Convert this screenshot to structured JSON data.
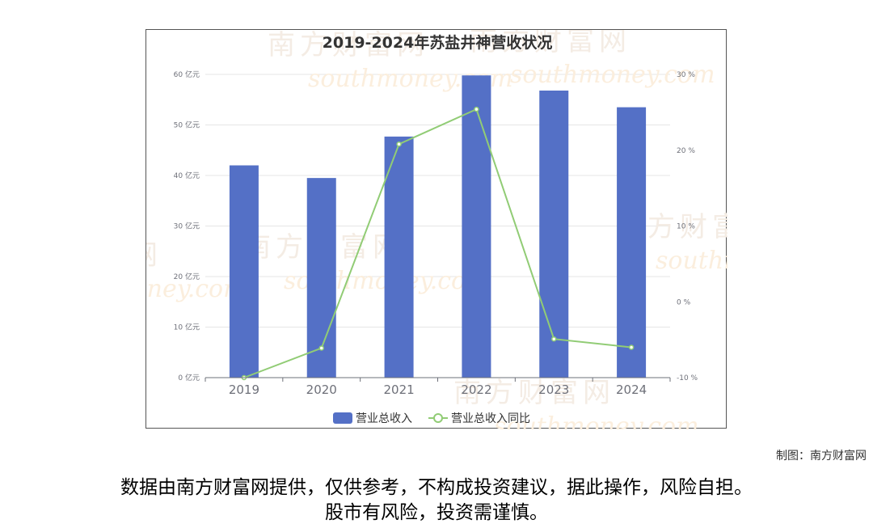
{
  "watermark": {
    "cn": "南方财富网",
    "en": "southmoney.com"
  },
  "credit": "制图：南方财富网",
  "disclaimer": {
    "line1": "数据由南方财富网提供，仅供参考，不构成投资建议，据此操作，风险自担。",
    "line2": "股市有风险，投资需谨慎。"
  },
  "colors": {
    "bar": "#5470c6",
    "line": "#91cc75"
  },
  "chart_data": {
    "type": "bar",
    "title": "2019-2024年苏盐井神营收状况",
    "categories": [
      "2019",
      "2020",
      "2021",
      "2022",
      "2023",
      "2024"
    ],
    "series": [
      {
        "name": "营业总收入",
        "type": "bar",
        "axis": "left",
        "values": [
          42.0,
          39.5,
          47.7,
          59.8,
          56.8,
          53.5
        ]
      },
      {
        "name": "营业总收入同比",
        "type": "line",
        "axis": "right",
        "values": [
          -10.0,
          -6.1,
          20.8,
          25.4,
          -4.9,
          -6.0
        ]
      }
    ],
    "y_left": {
      "min": 0,
      "max": 60,
      "ticks": [
        0,
        10,
        20,
        30,
        40,
        50,
        60
      ],
      "tick_labels": [
        "0 亿元",
        "10 亿元",
        "20 亿元",
        "30 亿元",
        "40 亿元",
        "50 亿元",
        "60 亿元"
      ]
    },
    "y_right": {
      "min": -10,
      "max": 30,
      "ticks": [
        -10,
        0,
        10,
        20,
        30
      ],
      "tick_labels": [
        "-10 %",
        "0 %",
        "10 %",
        "20 %",
        "30 %"
      ]
    },
    "grid": true,
    "legend_position": "bottom"
  }
}
